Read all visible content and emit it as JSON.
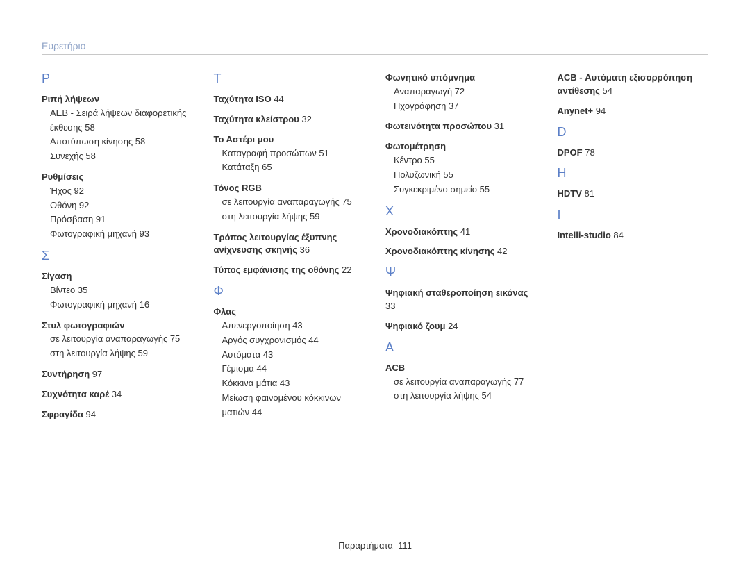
{
  "header": "Ευρετήριο",
  "footer": {
    "label": "Παραρτήματα",
    "page": "111"
  },
  "colors": {
    "letter": "#5b7fc7",
    "header": "#8fa3c7",
    "text": "#333333",
    "rule": "#c8c8c8"
  },
  "cols": [
    [
      {
        "letter": "Ρ"
      },
      {
        "title": "Ριπή λήψεων",
        "sub": [
          {
            "t": "AEB - Σειρά λήψεων διαφορετικής έκθεσης",
            "p": "58"
          },
          {
            "t": "Αποτύπωση κίνησης",
            "p": "58"
          },
          {
            "t": "Συνεχής",
            "p": "58"
          }
        ]
      },
      {
        "title": "Ρυθμίσεις",
        "sub": [
          {
            "t": "Ήχος",
            "p": "92"
          },
          {
            "t": "Οθόνη",
            "p": "92"
          },
          {
            "t": "Πρόσβαση",
            "p": "91"
          },
          {
            "t": "Φωτογραφική μηχανή",
            "p": "93"
          }
        ]
      },
      {
        "letter": "Σ"
      },
      {
        "title": "Σίγαση",
        "sub": [
          {
            "t": "Βίντεο",
            "p": "35"
          },
          {
            "t": "Φωτογραφική μηχανή",
            "p": "16"
          }
        ]
      },
      {
        "title": "Στυλ φωτογραφιών",
        "sub": [
          {
            "t": "σε λειτουργία αναπαραγωγής",
            "p": "75"
          },
          {
            "t": "στη λειτουργία λήψης",
            "p": "59"
          }
        ]
      },
      {
        "title": "Συντήρηση",
        "p": "97"
      },
      {
        "title": "Συχνότητα καρέ",
        "p": "34"
      },
      {
        "title": "Σφραγίδα",
        "p": "94"
      }
    ],
    [
      {
        "letter": "Τ"
      },
      {
        "title": "Ταχύτητα ISO",
        "p": "44"
      },
      {
        "title": "Ταχύτητα κλείστρου",
        "p": "32"
      },
      {
        "title": "Το Αστέρι μου",
        "sub": [
          {
            "t": "Καταγραφή προσώπων",
            "p": "51"
          },
          {
            "t": "Κατάταξη",
            "p": "65"
          }
        ]
      },
      {
        "title": "Τόνος RGB",
        "sub": [
          {
            "t": "σε λειτουργία αναπαραγωγής",
            "p": "75"
          },
          {
            "t": "στη λειτουργία λήψης",
            "p": "59"
          }
        ]
      },
      {
        "title": "Τρόπος λειτουργίας έξυπνης ανίχνευσης σκηνής",
        "p": "36"
      },
      {
        "title": "Τύπος εμφάνισης της οθόνης",
        "p": "22"
      },
      {
        "letter": "Φ"
      },
      {
        "title": "Φλας",
        "sub": [
          {
            "t": "Απενεργοποίηση",
            "p": "43"
          },
          {
            "t": "Αργός συγχρονισμός",
            "p": "44"
          },
          {
            "t": "Αυτόματα",
            "p": "43"
          },
          {
            "t": "Γέμισμα",
            "p": "44"
          },
          {
            "t": "Κόκκινα μάτια",
            "p": "43"
          },
          {
            "t": "Μείωση φαινομένου κόκκινων ματιών",
            "p": "44"
          }
        ]
      }
    ],
    [
      {
        "title": "Φωνητικό υπόμνημα",
        "sub": [
          {
            "t": "Αναπαραγωγή",
            "p": "72"
          },
          {
            "t": "Ηχογράφηση",
            "p": "37"
          }
        ]
      },
      {
        "title": "Φωτεινότητα προσώπου",
        "p": "31"
      },
      {
        "title": "Φωτομέτρηση",
        "sub": [
          {
            "t": "Κέντρο",
            "p": "55"
          },
          {
            "t": "Πολυζωνική",
            "p": "55"
          },
          {
            "t": "Συγκεκριμένο σημείο",
            "p": "55"
          }
        ]
      },
      {
        "letter": "Χ"
      },
      {
        "title": "Χρονοδιακόπτης",
        "p": "41"
      },
      {
        "title": "Χρονοδιακόπτης κίνησης",
        "p": "42"
      },
      {
        "letter": "Ψ"
      },
      {
        "title": "Ψηφιακή σταθεροποίηση εικόνας",
        "p": "33"
      },
      {
        "title": "Ψηφιακό ζουμ",
        "p": "24"
      },
      {
        "letter": "A"
      },
      {
        "title": "ACB",
        "sub": [
          {
            "t": "σε λειτουργία αναπαραγωγής",
            "p": "77"
          },
          {
            "t": "στη λειτουργία λήψης",
            "p": "54"
          }
        ]
      }
    ],
    [
      {
        "title": "ACB - Αυτόματη εξισορρόπηση αντίθεσης",
        "p": "54"
      },
      {
        "title": "Anynet+",
        "p": "94"
      },
      {
        "letter": "D"
      },
      {
        "title": "DPOF",
        "p": "78"
      },
      {
        "letter": "H"
      },
      {
        "title": "HDTV",
        "p": "81"
      },
      {
        "letter": "I"
      },
      {
        "title": "Intelli-studio",
        "p": "84"
      }
    ]
  ]
}
